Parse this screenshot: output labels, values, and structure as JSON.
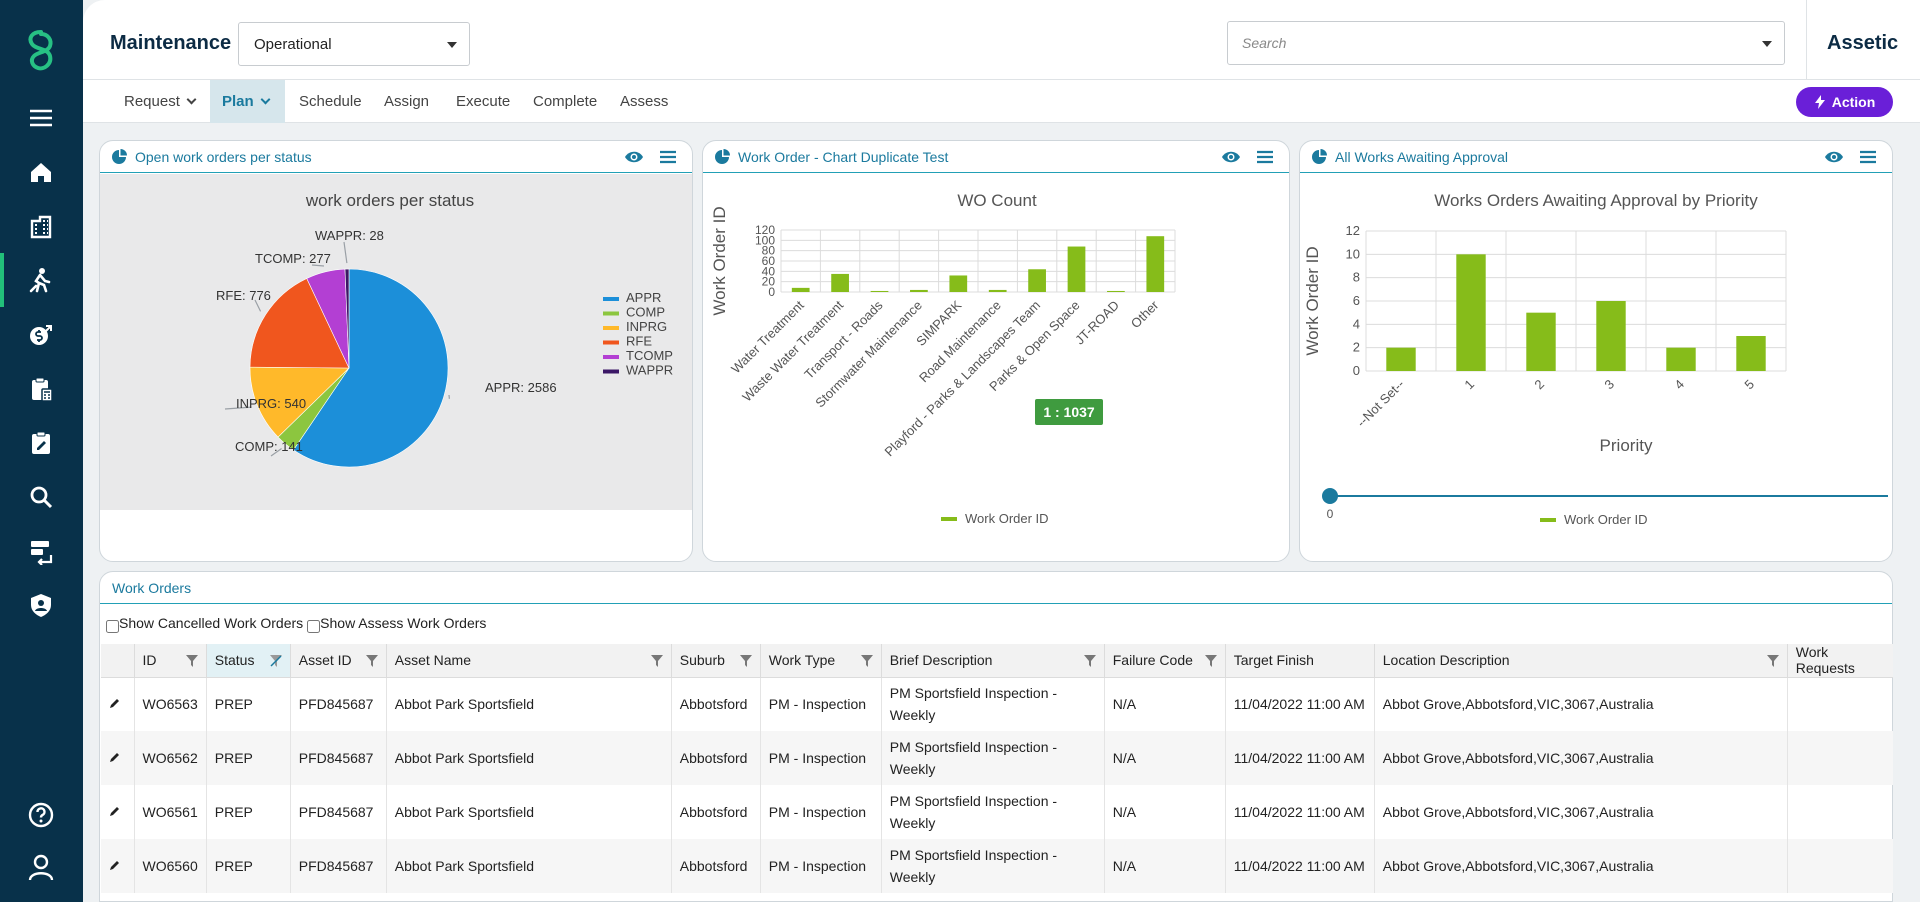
{
  "header": {
    "title": "Maintenance",
    "module": "Operational",
    "search_placeholder": "Search",
    "brand": "Assetic"
  },
  "subnav": {
    "items": [
      {
        "label": "Request",
        "dropdown": true
      },
      {
        "label": "Plan",
        "dropdown": true,
        "active": true
      },
      {
        "label": "Schedule"
      },
      {
        "label": "Assign"
      },
      {
        "label": "Execute"
      },
      {
        "label": "Complete"
      },
      {
        "label": "Assess"
      }
    ],
    "action_label": "Action"
  },
  "nav_icons": [
    "logo-icon",
    "menu-icon",
    "home-icon",
    "building-icon",
    "maintenance-worker-icon",
    "finance-icon",
    "clipboard-calc-icon",
    "clipboard-edit-icon",
    "search-icon",
    "data-import-icon",
    "security-shield-icon",
    "help-icon",
    "user-icon"
  ],
  "panels": {
    "pie": {
      "title": "Open work orders per status",
      "chart_title_visible": "work orders per status"
    },
    "wo_count": {
      "title": "Work Order - Chart Duplicate Test",
      "tooltip": "1 : 1037"
    },
    "approval": {
      "title": "All Works Awaiting Approval",
      "slider_value": "0"
    }
  },
  "chart_data": [
    {
      "type": "pie",
      "title": "work orders per status",
      "slices": [
        {
          "label": "APPR",
          "value": 2586,
          "color": "#1c8fd9",
          "callout": "APPR: 2586"
        },
        {
          "label": "COMP",
          "value": 141,
          "color": "#8cc63f",
          "callout": "COMP: 141"
        },
        {
          "label": "INPRG",
          "value": 540,
          "color": "#ffb92a",
          "callout": "INPRG: 540"
        },
        {
          "label": "RFE",
          "value": 776,
          "color": "#f0561e",
          "callout": "RFE: 776"
        },
        {
          "label": "TCOMP",
          "value": 277,
          "color": "#b33fd3",
          "callout": "TCOMP: 277"
        },
        {
          "label": "WAPPR",
          "value": 28,
          "color": "#3b1766",
          "callout": "WAPPR: 28"
        }
      ],
      "legend": [
        "APPR",
        "COMP",
        "INPRG",
        "RFE",
        "TCOMP",
        "WAPPR"
      ]
    },
    {
      "type": "bar",
      "title": "WO Count",
      "ylabel": "Work Order ID",
      "ylim": [
        0,
        120
      ],
      "yticks": [
        "0",
        "20",
        "40",
        "60",
        "80",
        "100",
        "120"
      ],
      "categories": [
        "Water Treatment",
        "Waste Water Treatment",
        "Transport - Roads",
        "Stormwater Maintenance",
        "SIMPARK",
        "Road Maintenance",
        "Playford - Parks & Landscapes Team",
        "Parks & Open Space",
        "JT-ROAD",
        "Other"
      ],
      "series": [
        {
          "name": "Work Order ID",
          "values": [
            8,
            35,
            2,
            4,
            32,
            4,
            44,
            88,
            2,
            108
          ],
          "color": "#86bc1a"
        }
      ]
    },
    {
      "type": "bar",
      "title": "Works Orders Awaiting Approval by Priority",
      "xlabel": "Priority",
      "ylabel": "Work Order ID",
      "ylim": [
        0,
        12
      ],
      "yticks": [
        "0",
        "2",
        "4",
        "6",
        "8",
        "10",
        "12"
      ],
      "categories": [
        "--Not Set--",
        "1",
        "2",
        "3",
        "4",
        "5"
      ],
      "series": [
        {
          "name": "Work Order ID",
          "values": [
            2,
            10,
            5,
            6,
            2,
            3
          ],
          "color": "#86bc1a"
        }
      ]
    }
  ],
  "work_orders": {
    "title": "Work Orders",
    "show_cancelled": "Show Cancelled Work Orders",
    "show_assess": "Show Assess Work Orders",
    "columns": [
      "",
      "ID",
      "Status",
      "Asset ID",
      "Asset Name",
      "Suburb",
      "Work Type",
      "Brief Description",
      "Failure Code",
      "Target Finish",
      "Location Description",
      "Work Requests"
    ],
    "rows": [
      {
        "id": "WO6563",
        "status": "PREP",
        "asset_id": "PFD845687",
        "asset_name": "Abbot Park Sportsfield",
        "suburb": "Abbotsford",
        "work_type": "PM - Inspection",
        "brief": "PM Sportsfield Inspection - Weekly",
        "failure": "N/A",
        "target": "11/04/2022 11:00 AM",
        "location": "Abbot Grove,Abbotsford,VIC,3067,Australia",
        "requests": ""
      },
      {
        "id": "WO6562",
        "status": "PREP",
        "asset_id": "PFD845687",
        "asset_name": "Abbot Park Sportsfield",
        "suburb": "Abbotsford",
        "work_type": "PM - Inspection",
        "brief": "PM Sportsfield Inspection - Weekly",
        "failure": "N/A",
        "target": "11/04/2022 11:00 AM",
        "location": "Abbot Grove,Abbotsford,VIC,3067,Australia",
        "requests": ""
      },
      {
        "id": "WO6561",
        "status": "PREP",
        "asset_id": "PFD845687",
        "asset_name": "Abbot Park Sportsfield",
        "suburb": "Abbotsford",
        "work_type": "PM - Inspection",
        "brief": "PM Sportsfield Inspection - Weekly",
        "failure": "N/A",
        "target": "11/04/2022 11:00 AM",
        "location": "Abbot Grove,Abbotsford,VIC,3067,Australia",
        "requests": ""
      },
      {
        "id": "WO6560",
        "status": "PREP",
        "asset_id": "PFD845687",
        "asset_name": "Abbot Park Sportsfield",
        "suburb": "Abbotsford",
        "work_type": "PM - Inspection",
        "brief": "PM Sportsfield Inspection - Weekly",
        "failure": "N/A",
        "target": "11/04/2022 11:00 AM",
        "location": "Abbot Grove,Abbotsford,VIC,3067,Australia",
        "requests": ""
      }
    ]
  }
}
